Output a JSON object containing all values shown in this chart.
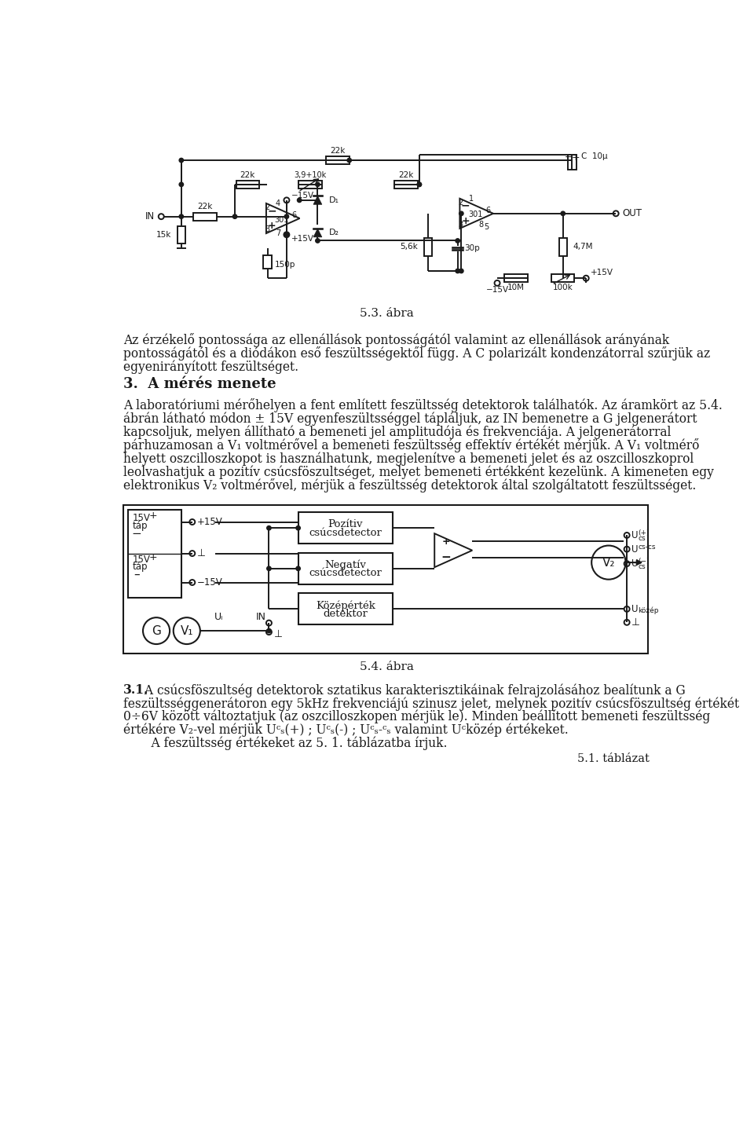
{
  "bg": "#ffffff",
  "tc": "#1a1a1a",
  "lc": "#1a1a1a",
  "fig1_caption": "5.3. ábra",
  "fig2_caption": "5.4. ábra",
  "para1_lines": [
    "Az érzékelő pontossága az ellenállások pontosságától valamint az ellenállások arányának",
    "pontosságától és a diódákon eső feszültsségektől függ. A C polarizált kondenzátorral szűrjük az",
    "egyenirányított feszültséget."
  ],
  "heading": "3.  A mérés menete",
  "para2_lines": [
    "A laboratóriumi mérőhelyen a fent említett feszültsség detektorok találhatók. Az áramkört az 5.4.",
    "ábrán látható módon ± 15V egyenfeszültsséggel tápláljuk, az IN bemenetre a G jelgenerátort",
    "kapcsoljuk, melyen állítható a bemeneti jel amplitudója és frekvenciája. A jelgenerátorral",
    "párhuzamosan a V₁ voltmérővel a bemeneti feszültsség effektív értékét mérjük. A V₁ voltmérő",
    "helyett oszcilloszkopot is használhatunk, megjelenítve a bemeneti jelet és az oszcilloszkoprol",
    "leolvashatjuk a pozitív csúcsföszultséget, melyet bemeneti értékként kezelünk. A kimeneten egy",
    "elektronikus V₂ voltmérővel, mérjük a feszültsség detektorok által szolgáltatott feszültsséget."
  ],
  "para3_bold": "3.1.",
  "para3_lines": [
    " A csúcsföszultség detektorok sztatikus karakterisztikáinak felrajzolásához bealítunk a G",
    "feszültsséggenerátoron egy 5kHz frekvenciájú szinusz jelet, melynek pozitív csúcsföszultség értékét",
    "0÷6V között változtatjuk (az oszcilloszkopen mérjük le). Minden beállított bemeneti feszültsség",
    "értékére V₂-vel mérjük Uᶜₛ(+) ; Uᶜₛ(-) ; Uᶜₛ-ᶜₛ valamint Uᶜközép értékeket."
  ],
  "para4": "    A feszültsség értékeket az 5. 1. táblázatba írjuk.",
  "table_ref": "5.1. táblázat"
}
